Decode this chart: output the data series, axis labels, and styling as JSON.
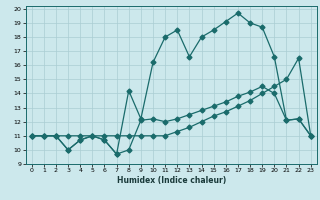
{
  "xlabel": "Humidex (Indice chaleur)",
  "bg_color": "#cce8ec",
  "grid_color": "#aacdd3",
  "line_color": "#1a6b6b",
  "xlim": [
    -0.5,
    23.5
  ],
  "ylim": [
    9,
    20.2
  ],
  "xticks": [
    0,
    1,
    2,
    3,
    4,
    5,
    6,
    7,
    8,
    9,
    10,
    11,
    12,
    13,
    14,
    15,
    16,
    17,
    18,
    19,
    20,
    21,
    22,
    23
  ],
  "yticks": [
    9,
    10,
    11,
    12,
    13,
    14,
    15,
    16,
    17,
    18,
    19,
    20
  ],
  "series1_x": [
    0,
    1,
    2,
    3,
    4,
    5,
    6,
    7,
    8,
    9,
    10,
    11,
    12,
    13,
    14,
    15,
    16,
    17,
    18,
    19,
    20,
    21,
    22,
    23
  ],
  "series1_y": [
    11,
    11,
    11,
    11,
    11,
    11,
    11,
    11,
    11,
    11,
    11,
    11,
    11.3,
    11.6,
    12,
    12.4,
    12.7,
    13.1,
    13.5,
    14,
    14.5,
    15,
    16.5,
    11
  ],
  "series2_x": [
    0,
    1,
    2,
    3,
    4,
    5,
    6,
    7,
    8,
    9,
    10,
    11,
    12,
    13,
    14,
    15,
    16,
    17,
    18,
    19,
    20,
    21,
    22,
    23
  ],
  "series2_y": [
    11,
    11,
    11,
    10,
    10.7,
    11,
    10.7,
    9.7,
    10,
    12.1,
    12.2,
    12,
    12.2,
    12.5,
    12.8,
    13.1,
    13.4,
    13.8,
    14.1,
    14.5,
    14,
    12.1,
    12.2,
    11
  ],
  "series3_x": [
    0,
    1,
    2,
    3,
    4,
    5,
    6,
    7,
    8,
    9,
    10,
    11,
    12,
    13,
    14,
    15,
    16,
    17,
    18,
    19,
    20,
    21,
    22,
    23
  ],
  "series3_y": [
    11,
    11,
    11,
    10,
    10.7,
    11,
    10.7,
    9.7,
    14.2,
    12.2,
    16.2,
    18,
    18.5,
    16.6,
    18,
    18.5,
    19.1,
    19.7,
    19,
    18.7,
    16.6,
    12.1,
    12.2,
    11
  ]
}
